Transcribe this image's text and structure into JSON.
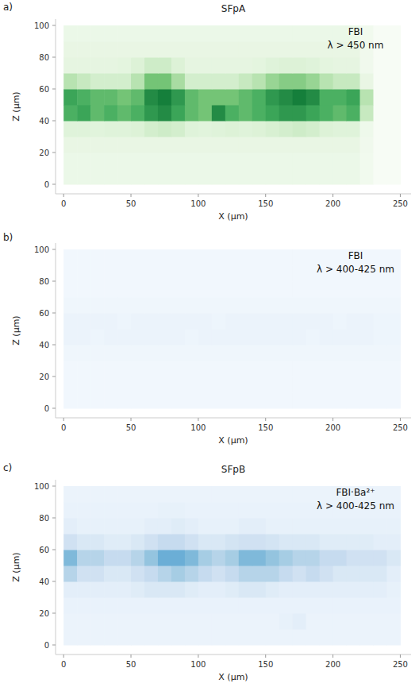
{
  "chart_data": [
    {
      "type": "heatmap",
      "panel": "a)",
      "title": "SFpA",
      "annotations": [
        "FBI",
        "λ > 450 nm"
      ],
      "x_label": "X (μm)",
      "y_label": "Z (μm)",
      "color": "Greens",
      "grid": false,
      "xlim": [
        -6,
        258
      ],
      "ylim": [
        -6,
        104
      ],
      "xticks": [
        0,
        50,
        100,
        150,
        200,
        250
      ],
      "yticks": [
        0,
        20,
        40,
        60,
        80,
        100
      ],
      "color_range": [
        0,
        1
      ],
      "x_bins": [
        0,
        10,
        20,
        30,
        40,
        50,
        60,
        70,
        80,
        90,
        100,
        110,
        120,
        130,
        140,
        150,
        160,
        170,
        180,
        190,
        200,
        210,
        220,
        230,
        240,
        250
      ],
      "z_bins": [
        0,
        10,
        20,
        30,
        40,
        50,
        60,
        70,
        80,
        90,
        100
      ],
      "cells": [
        [
          0.08,
          0.08,
          0.08,
          0.08,
          0.08,
          0.08,
          0.08,
          0.08,
          0.08,
          0.08,
          0.08,
          0.08,
          0.08,
          0.08,
          0.08,
          0.08,
          0.08,
          0.08,
          0.08,
          0.08,
          0.08,
          0.08,
          0.04,
          0,
          0
        ],
        [
          0.08,
          0.08,
          0.08,
          0.08,
          0.08,
          0.08,
          0.08,
          0.08,
          0.08,
          0.08,
          0.08,
          0.08,
          0.08,
          0.08,
          0.08,
          0.08,
          0.08,
          0.08,
          0.08,
          0.08,
          0.08,
          0.08,
          0.04,
          0,
          0
        ],
        [
          0.1,
          0.1,
          0.1,
          0.1,
          0.1,
          0.1,
          0.1,
          0.1,
          0.1,
          0.1,
          0.1,
          0.1,
          0.1,
          0.1,
          0.1,
          0.1,
          0.1,
          0.1,
          0.1,
          0.1,
          0.1,
          0.1,
          0.05,
          0,
          0
        ],
        [
          0.15,
          0.15,
          0.14,
          0.15,
          0.15,
          0.16,
          0.2,
          0.22,
          0.2,
          0.15,
          0.14,
          0.15,
          0.16,
          0.15,
          0.16,
          0.18,
          0.2,
          0.22,
          0.2,
          0.16,
          0.15,
          0.15,
          0.06,
          0,
          0
        ],
        [
          0.6,
          0.65,
          0.55,
          0.6,
          0.55,
          0.6,
          0.7,
          0.75,
          0.65,
          0.55,
          0.5,
          0.75,
          0.6,
          0.55,
          0.6,
          0.65,
          0.7,
          0.7,
          0.65,
          0.6,
          0.55,
          0.6,
          0.25,
          0,
          0
        ],
        [
          0.65,
          0.6,
          0.55,
          0.55,
          0.5,
          0.55,
          0.75,
          0.8,
          0.7,
          0.55,
          0.5,
          0.5,
          0.5,
          0.55,
          0.6,
          0.7,
          0.75,
          0.8,
          0.75,
          0.6,
          0.6,
          0.65,
          0.3,
          0,
          0
        ],
        [
          0.3,
          0.25,
          0.2,
          0.2,
          0.2,
          0.3,
          0.5,
          0.5,
          0.35,
          0.2,
          0.2,
          0.2,
          0.2,
          0.25,
          0.3,
          0.4,
          0.45,
          0.45,
          0.4,
          0.3,
          0.25,
          0.25,
          0.1,
          0,
          0
        ],
        [
          0.12,
          0.12,
          0.12,
          0.12,
          0.13,
          0.16,
          0.22,
          0.22,
          0.16,
          0.12,
          0.12,
          0.12,
          0.12,
          0.12,
          0.13,
          0.15,
          0.16,
          0.16,
          0.15,
          0.13,
          0.12,
          0.12,
          0.05,
          0,
          0
        ],
        [
          0.1,
          0.1,
          0.1,
          0.1,
          0.1,
          0.1,
          0.1,
          0.1,
          0.1,
          0.1,
          0.1,
          0.1,
          0.1,
          0.1,
          0.1,
          0.1,
          0.1,
          0.1,
          0.1,
          0.1,
          0.1,
          0.1,
          0.05,
          0,
          0
        ],
        [
          0.08,
          0.08,
          0.08,
          0.08,
          0.08,
          0.08,
          0.08,
          0.08,
          0.08,
          0.08,
          0.08,
          0.08,
          0.08,
          0.08,
          0.08,
          0.08,
          0.08,
          0.08,
          0.08,
          0.08,
          0.08,
          0.08,
          0.04,
          0,
          0
        ]
      ]
    },
    {
      "type": "heatmap",
      "panel": "b)",
      "annotations": [
        "FBI",
        "λ > 400-425 nm"
      ],
      "x_label": "X (μm)",
      "y_label": "Z (μm)",
      "color": "Blues",
      "grid": false,
      "xlim": [
        -6,
        258
      ],
      "ylim": [
        -6,
        104
      ],
      "xticks": [
        0,
        50,
        100,
        150,
        200,
        250
      ],
      "yticks": [
        0,
        20,
        40,
        60,
        80,
        100
      ],
      "color_range": [
        0,
        1
      ],
      "x_bins": [
        0,
        10,
        20,
        30,
        40,
        50,
        60,
        70,
        80,
        90,
        100,
        110,
        120,
        130,
        140,
        150,
        160,
        170,
        180,
        190,
        200,
        210,
        220,
        230,
        240,
        250
      ],
      "z_bins": [
        0,
        10,
        20,
        30,
        40,
        50,
        60,
        70,
        80,
        90,
        100
      ],
      "cells": [
        [
          0.03,
          0.03,
          0.03,
          0.03,
          0.03,
          0.03,
          0.03,
          0.03,
          0.03,
          0.03,
          0.03,
          0.03,
          0.03,
          0.03,
          0.03,
          0.03,
          0.03,
          0.03,
          0.03,
          0.03,
          0.03,
          0.03,
          0.03,
          0.03,
          0.03
        ],
        [
          0.03,
          0.03,
          0.03,
          0.03,
          0.03,
          0.03,
          0.03,
          0.03,
          0.03,
          0.03,
          0.03,
          0.03,
          0.03,
          0.03,
          0.03,
          0.03,
          0.03,
          0.03,
          0.03,
          0.03,
          0.03,
          0.03,
          0.03,
          0.03,
          0.03
        ],
        [
          0.03,
          0.03,
          0.03,
          0.03,
          0.03,
          0.03,
          0.03,
          0.03,
          0.03,
          0.03,
          0.03,
          0.03,
          0.03,
          0.03,
          0.03,
          0.03,
          0.03,
          0.03,
          0.03,
          0.03,
          0.03,
          0.03,
          0.03,
          0.03,
          0.03
        ],
        [
          0.04,
          0.04,
          0.04,
          0.04,
          0.04,
          0.04,
          0.04,
          0.04,
          0.04,
          0.04,
          0.04,
          0.04,
          0.04,
          0.04,
          0.04,
          0.04,
          0.04,
          0.04,
          0.04,
          0.04,
          0.04,
          0.04,
          0.04,
          0.04,
          0.04
        ],
        [
          0.06,
          0.06,
          0.05,
          0.06,
          0.06,
          0.06,
          0.06,
          0.06,
          0.06,
          0.05,
          0.06,
          0.06,
          0.06,
          0.06,
          0.06,
          0.06,
          0.06,
          0.06,
          0.05,
          0.06,
          0.06,
          0.06,
          0.06,
          0.05,
          0.05
        ],
        [
          0.06,
          0.06,
          0.06,
          0.06,
          0.05,
          0.06,
          0.06,
          0.06,
          0.06,
          0.06,
          0.06,
          0.05,
          0.06,
          0.06,
          0.06,
          0.06,
          0.06,
          0.06,
          0.06,
          0.06,
          0.05,
          0.06,
          0.06,
          0.05,
          0.05
        ],
        [
          0.04,
          0.04,
          0.04,
          0.04,
          0.04,
          0.04,
          0.04,
          0.04,
          0.04,
          0.04,
          0.04,
          0.04,
          0.04,
          0.04,
          0.04,
          0.04,
          0.04,
          0.04,
          0.04,
          0.04,
          0.04,
          0.04,
          0.04,
          0.04,
          0.04
        ],
        [
          0.03,
          0.03,
          0.03,
          0.03,
          0.03,
          0.03,
          0.03,
          0.03,
          0.03,
          0.03,
          0.03,
          0.03,
          0.03,
          0.03,
          0.03,
          0.03,
          0.03,
          0.03,
          0.03,
          0.03,
          0.03,
          0.03,
          0.03,
          0.03,
          0.03
        ],
        [
          0.03,
          0.03,
          0.03,
          0.03,
          0.03,
          0.03,
          0.03,
          0.03,
          0.03,
          0.03,
          0.03,
          0.03,
          0.03,
          0.03,
          0.03,
          0.03,
          0.03,
          0.03,
          0.03,
          0.03,
          0.03,
          0.03,
          0.03,
          0.03,
          0.03
        ],
        [
          0.03,
          0.03,
          0.03,
          0.03,
          0.03,
          0.03,
          0.03,
          0.03,
          0.03,
          0.03,
          0.03,
          0.03,
          0.03,
          0.03,
          0.03,
          0.03,
          0.03,
          0.03,
          0.03,
          0.03,
          0.03,
          0.03,
          0.03,
          0.03,
          0.03
        ]
      ]
    },
    {
      "type": "heatmap",
      "panel": "c)",
      "title": "SFpB",
      "annotations": [
        "FBI·Ba²⁺",
        "λ > 400-425 nm"
      ],
      "x_label": "X (μm)",
      "y_label": "Z (μm)",
      "color": "Blues",
      "grid": false,
      "xlim": [
        -6,
        258
      ],
      "ylim": [
        -6,
        104
      ],
      "xticks": [
        0,
        50,
        100,
        150,
        200,
        250
      ],
      "yticks": [
        0,
        20,
        40,
        60,
        80,
        100
      ],
      "color_range": [
        0,
        1
      ],
      "x_bins": [
        0,
        10,
        20,
        30,
        40,
        50,
        60,
        70,
        80,
        90,
        100,
        110,
        120,
        130,
        140,
        150,
        160,
        170,
        180,
        190,
        200,
        210,
        220,
        230,
        240,
        250
      ],
      "z_bins": [
        0,
        10,
        20,
        30,
        40,
        50,
        60,
        70,
        80,
        90,
        100
      ],
      "cells": [
        [
          0.06,
          0.06,
          0.06,
          0.06,
          0.06,
          0.06,
          0.06,
          0.06,
          0.06,
          0.06,
          0.06,
          0.06,
          0.06,
          0.06,
          0.06,
          0.06,
          0.06,
          0.06,
          0.06,
          0.06,
          0.06,
          0.06,
          0.06,
          0.06,
          0.06
        ],
        [
          0.06,
          0.06,
          0.06,
          0.06,
          0.06,
          0.06,
          0.06,
          0.06,
          0.06,
          0.06,
          0.06,
          0.06,
          0.06,
          0.06,
          0.06,
          0.06,
          0.08,
          0.1,
          0.06,
          0.06,
          0.06,
          0.06,
          0.06,
          0.06,
          0.06
        ],
        [
          0.07,
          0.07,
          0.07,
          0.07,
          0.07,
          0.07,
          0.07,
          0.07,
          0.07,
          0.07,
          0.07,
          0.07,
          0.07,
          0.07,
          0.07,
          0.07,
          0.07,
          0.07,
          0.07,
          0.07,
          0.07,
          0.07,
          0.07,
          0.07,
          0.07
        ],
        [
          0.1,
          0.1,
          0.1,
          0.1,
          0.1,
          0.12,
          0.15,
          0.15,
          0.15,
          0.12,
          0.1,
          0.1,
          0.12,
          0.15,
          0.15,
          0.12,
          0.1,
          0.1,
          0.1,
          0.1,
          0.1,
          0.1,
          0.1,
          0.1,
          0.08
        ],
        [
          0.3,
          0.2,
          0.2,
          0.15,
          0.15,
          0.2,
          0.25,
          0.3,
          0.35,
          0.3,
          0.25,
          0.2,
          0.25,
          0.3,
          0.3,
          0.3,
          0.25,
          0.2,
          0.25,
          0.2,
          0.15,
          0.15,
          0.15,
          0.15,
          0.1
        ],
        [
          0.45,
          0.3,
          0.3,
          0.25,
          0.25,
          0.3,
          0.4,
          0.5,
          0.5,
          0.45,
          0.35,
          0.3,
          0.35,
          0.45,
          0.45,
          0.4,
          0.35,
          0.3,
          0.3,
          0.25,
          0.25,
          0.2,
          0.2,
          0.2,
          0.15
        ],
        [
          0.2,
          0.15,
          0.15,
          0.12,
          0.12,
          0.15,
          0.2,
          0.25,
          0.25,
          0.2,
          0.15,
          0.15,
          0.18,
          0.2,
          0.2,
          0.18,
          0.15,
          0.15,
          0.15,
          0.12,
          0.12,
          0.12,
          0.12,
          0.1,
          0.1
        ],
        [
          0.1,
          0.08,
          0.08,
          0.08,
          0.08,
          0.08,
          0.1,
          0.1,
          0.12,
          0.1,
          0.08,
          0.08,
          0.08,
          0.1,
          0.1,
          0.08,
          0.08,
          0.08,
          0.08,
          0.08,
          0.08,
          0.08,
          0.08,
          0.08,
          0.08
        ],
        [
          0.07,
          0.07,
          0.07,
          0.07,
          0.07,
          0.07,
          0.07,
          0.08,
          0.08,
          0.07,
          0.07,
          0.07,
          0.07,
          0.07,
          0.07,
          0.07,
          0.07,
          0.07,
          0.07,
          0.07,
          0.07,
          0.07,
          0.07,
          0.07,
          0.07
        ],
        [
          0.06,
          0.06,
          0.06,
          0.06,
          0.06,
          0.06,
          0.06,
          0.06,
          0.06,
          0.06,
          0.06,
          0.06,
          0.06,
          0.06,
          0.06,
          0.06,
          0.06,
          0.06,
          0.06,
          0.06,
          0.06,
          0.06,
          0.06,
          0.06,
          0.06
        ]
      ]
    }
  ]
}
